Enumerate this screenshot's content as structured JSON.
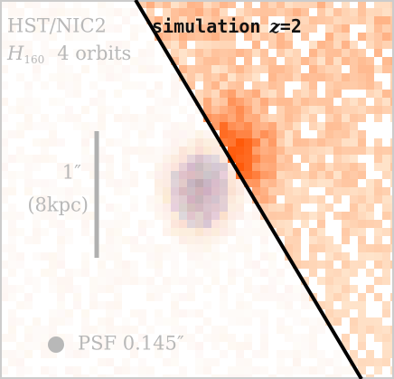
{
  "labels": {
    "instrument": "HST/NIC2",
    "simulation": "simulation",
    "redshift_var": "z",
    "redshift_value": "=2",
    "filter": "H",
    "filter_sub": "160",
    "exposure": "4 orbits",
    "scale": "1″",
    "scale_kpc": "(8kpc)",
    "psf": "PSF 0.145″"
  }
}
